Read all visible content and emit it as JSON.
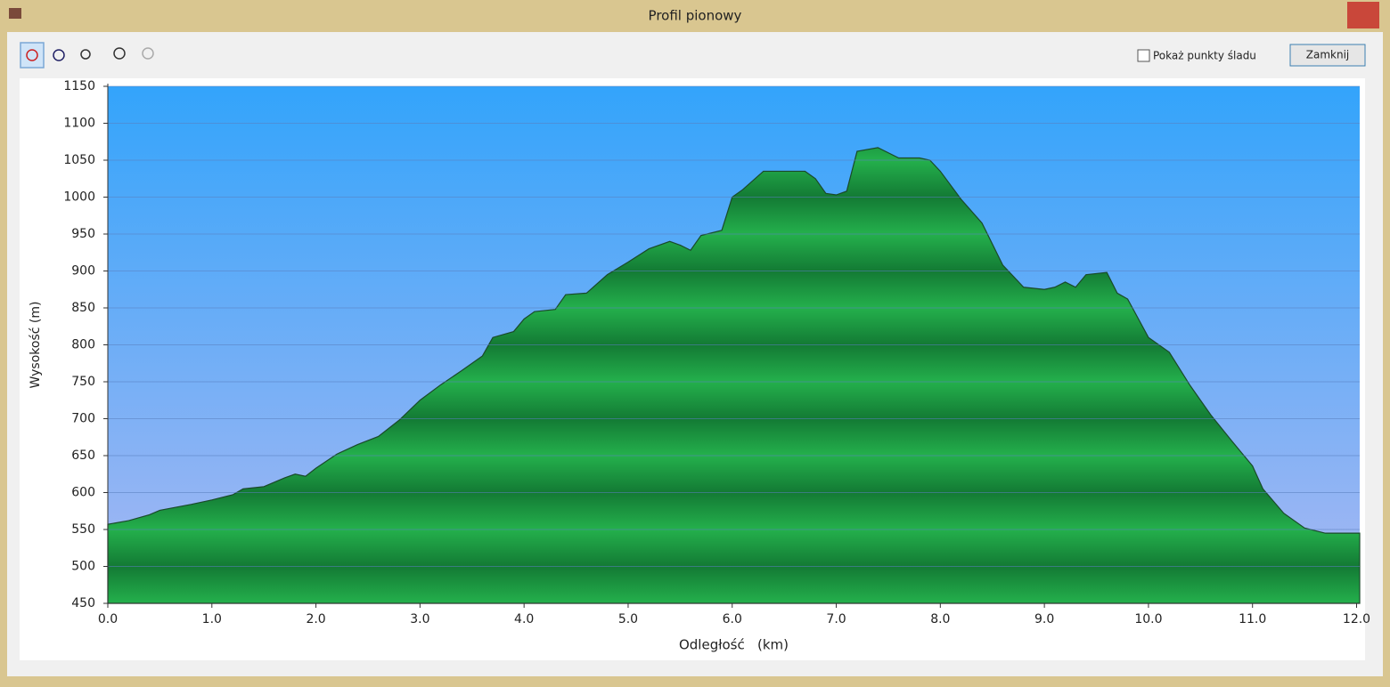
{
  "window": {
    "title": "Profil pionowy",
    "show_points_label": "Pokaż punkty śladu",
    "close_button": "Zamknij"
  },
  "chart_data": {
    "type": "area",
    "xlabel": "Odległość   (km)",
    "ylabel": "Wysokość (m)",
    "color": "#1fa343",
    "x": [
      0,
      0.2,
      0.4,
      0.5,
      0.8,
      1.0,
      1.2,
      1.3,
      1.5,
      1.7,
      1.8,
      1.9,
      2.0,
      2.2,
      2.4,
      2.6,
      2.8,
      3.0,
      3.2,
      3.4,
      3.6,
      3.7,
      3.9,
      4.0,
      4.1,
      4.3,
      4.4,
      4.6,
      4.8,
      5.0,
      5.2,
      5.4,
      5.5,
      5.6,
      5.7,
      5.9,
      6.0,
      6.1,
      6.3,
      6.5,
      6.7,
      6.8,
      6.9,
      7.0,
      7.1,
      7.2,
      7.4,
      7.6,
      7.8,
      7.9,
      8.0,
      8.2,
      8.4,
      8.6,
      8.8,
      9.0,
      9.1,
      9.2,
      9.3,
      9.4,
      9.6,
      9.7,
      9.8,
      10.0,
      10.2,
      10.4,
      10.6,
      10.8,
      11.0,
      11.1,
      11.3,
      11.5,
      11.7,
      12.0,
      12.03
    ],
    "values": [
      557,
      562,
      570,
      576,
      584,
      590,
      597,
      605,
      608,
      620,
      625,
      622,
      633,
      652,
      665,
      676,
      698,
      725,
      746,
      765,
      785,
      810,
      818,
      835,
      845,
      848,
      868,
      870,
      895,
      912,
      930,
      940,
      935,
      928,
      948,
      955,
      1000,
      1010,
      1035,
      1035,
      1035,
      1025,
      1005,
      1003,
      1008,
      1062,
      1067,
      1053,
      1053,
      1050,
      1035,
      997,
      965,
      908,
      878,
      875,
      878,
      885,
      878,
      895,
      898,
      870,
      862,
      810,
      790,
      745,
      705,
      670,
      636,
      605,
      572,
      552,
      545,
      545,
      545
    ],
    "xlim": [
      0,
      12.03
    ],
    "ylim": [
      450,
      1150
    ],
    "xticks": [
      {
        "value": 0,
        "label": "0.0"
      },
      {
        "value": 1,
        "label": "1.0"
      },
      {
        "value": 2,
        "label": "2.0"
      },
      {
        "value": 3,
        "label": "3.0"
      },
      {
        "value": 4,
        "label": "4.0"
      },
      {
        "value": 5,
        "label": "5.0"
      },
      {
        "value": 6,
        "label": "6.0"
      },
      {
        "value": 7,
        "label": "7.0"
      },
      {
        "value": 8,
        "label": "8.0"
      },
      {
        "value": 9,
        "label": "9.0"
      },
      {
        "value": 10,
        "label": "10.0"
      },
      {
        "value": 11,
        "label": "11.0"
      },
      {
        "value": 12,
        "label": "12.0"
      }
    ],
    "yticks": [
      450,
      500,
      550,
      600,
      650,
      700,
      750,
      800,
      850,
      900,
      950,
      1000,
      1050,
      1100,
      1150
    ],
    "grid": true
  }
}
